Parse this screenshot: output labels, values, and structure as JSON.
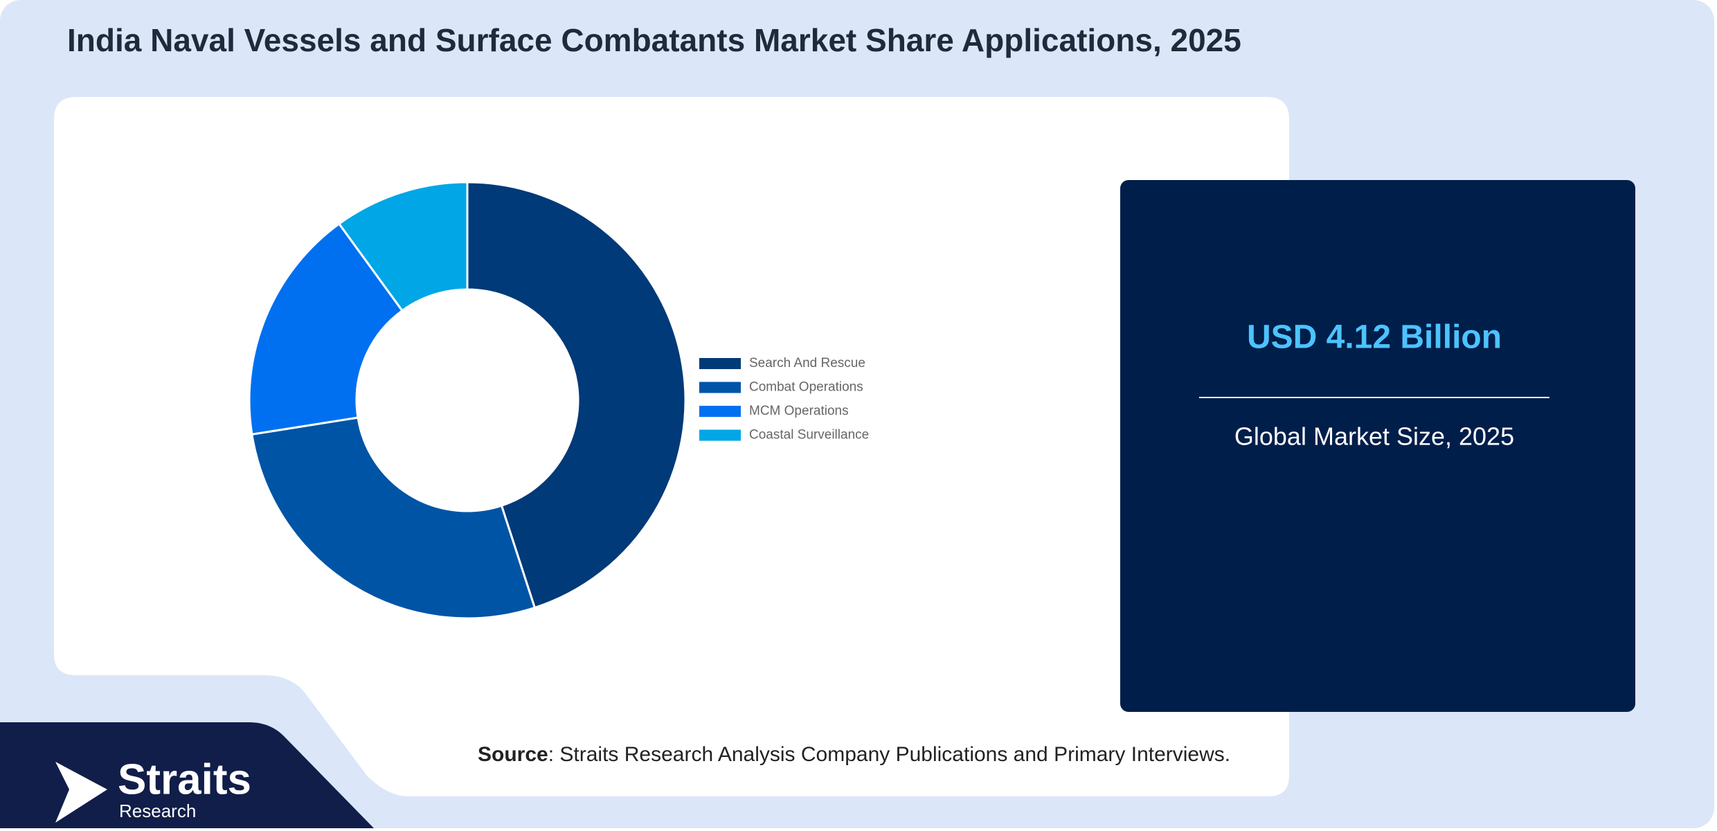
{
  "chart_data": {
    "type": "pie",
    "title": "India Naval Vessels and Surface Combatants Market Share Applications, 2025",
    "categories": [
      "Search And Rescue",
      "Combat Operations",
      "MCM Operations",
      "Coastal Surveillance"
    ],
    "values": [
      45,
      27.5,
      17.5,
      10
    ],
    "colors": [
      "#003a78",
      "#0054a6",
      "#0070f0",
      "#00a6e6"
    ],
    "legend": "right"
  },
  "stat": {
    "value": "USD 4.12 Billion",
    "caption": "Global Market Size, 2025"
  },
  "source": {
    "label": "Source",
    "text": ": Straits Research Analysis Company Publications and Primary Interviews."
  },
  "logo": {
    "name": "Straits",
    "sub": "Research"
  }
}
